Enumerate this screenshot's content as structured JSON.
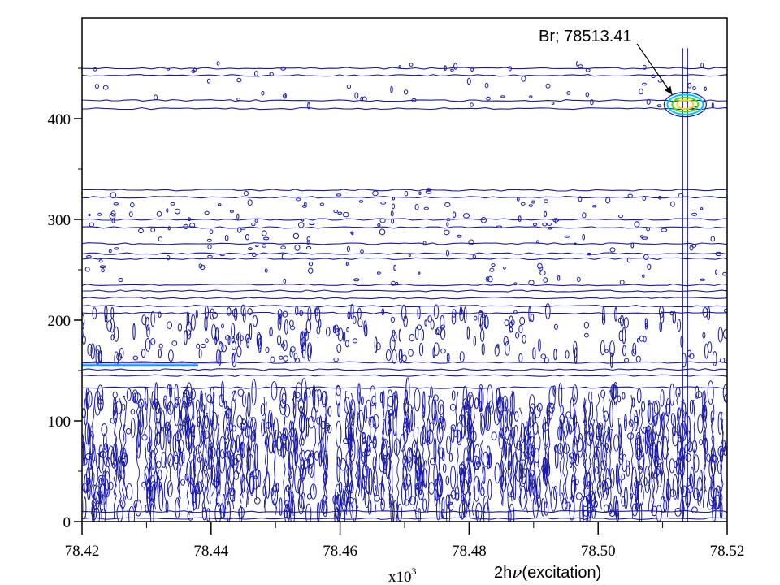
{
  "chart_data": {
    "type": "heatmap",
    "subtype": "contour",
    "title": "",
    "xlabel": "(excitation)",
    "xlabel_prefix": "2h",
    "xlabel_symbol": "ν",
    "x_multiplier_base": "x10",
    "x_multiplier_exp": "3",
    "ylabel": "",
    "xlim": [
      78.42,
      78.52
    ],
    "ylim": [
      0,
      480
    ],
    "x_ticks": [
      78.42,
      78.44,
      78.46,
      78.48,
      78.5,
      78.52
    ],
    "x_tick_labels": [
      "78.42",
      "78.44",
      "78.46",
      "78.48",
      "78.50",
      "78.52"
    ],
    "y_ticks": [
      0,
      100,
      200,
      300,
      400
    ],
    "y_tick_labels": [
      "0",
      "100",
      "200",
      "300",
      "400"
    ],
    "grid": false,
    "contour_color": "#1a1aa6",
    "horizontal_bands": [
      {
        "y": 450,
        "x_start": 78.42,
        "x_end": 78.52
      },
      {
        "y": 443,
        "x_start": 78.42,
        "x_end": 78.52
      },
      {
        "y": 418,
        "x_start": 78.42,
        "x_end": 78.52
      },
      {
        "y": 410,
        "x_start": 78.42,
        "x_end": 78.52
      },
      {
        "y": 329,
        "x_start": 78.42,
        "x_end": 78.52
      },
      {
        "y": 322,
        "x_start": 78.42,
        "x_end": 78.52
      },
      {
        "y": 300,
        "x_start": 78.42,
        "x_end": 78.52
      },
      {
        "y": 292,
        "x_start": 78.42,
        "x_end": 78.52
      },
      {
        "y": 276,
        "x_start": 78.42,
        "x_end": 78.52
      },
      {
        "y": 266,
        "x_start": 78.42,
        "x_end": 78.52
      },
      {
        "y": 261,
        "x_start": 78.42,
        "x_end": 78.52
      },
      {
        "y": 235,
        "x_start": 78.42,
        "x_end": 78.52
      },
      {
        "y": 229,
        "x_start": 78.42,
        "x_end": 78.52
      },
      {
        "y": 222,
        "x_start": 78.42,
        "x_end": 78.52
      },
      {
        "y": 214,
        "x_start": 78.42,
        "x_end": 78.52
      },
      {
        "y": 207,
        "x_start": 78.42,
        "x_end": 78.52
      },
      {
        "y": 158,
        "x_start": 78.42,
        "x_end": 78.52
      },
      {
        "y": 151,
        "x_start": 78.42,
        "x_end": 78.52
      },
      {
        "y": 145,
        "x_start": 78.42,
        "x_end": 78.52
      },
      {
        "y": 133,
        "x_start": 78.42,
        "x_end": 78.52
      },
      {
        "y": 10,
        "x_start": 78.42,
        "x_end": 78.52
      },
      {
        "y": 3,
        "x_start": 78.42,
        "x_end": 78.52
      }
    ],
    "strong_features": [
      {
        "x_start": 78.42,
        "x_end": 78.438,
        "y": 155,
        "color": "#1e90ff"
      }
    ],
    "peak": {
      "x": 78.5135,
      "y": 414,
      "label": "Br; 78513.41",
      "colors": [
        "#ffd400",
        "#40e000",
        "#00c8ff"
      ]
    },
    "annotations": [
      {
        "text": "Br; 78513.41",
        "x": 78.5135,
        "y": 414
      }
    ]
  }
}
